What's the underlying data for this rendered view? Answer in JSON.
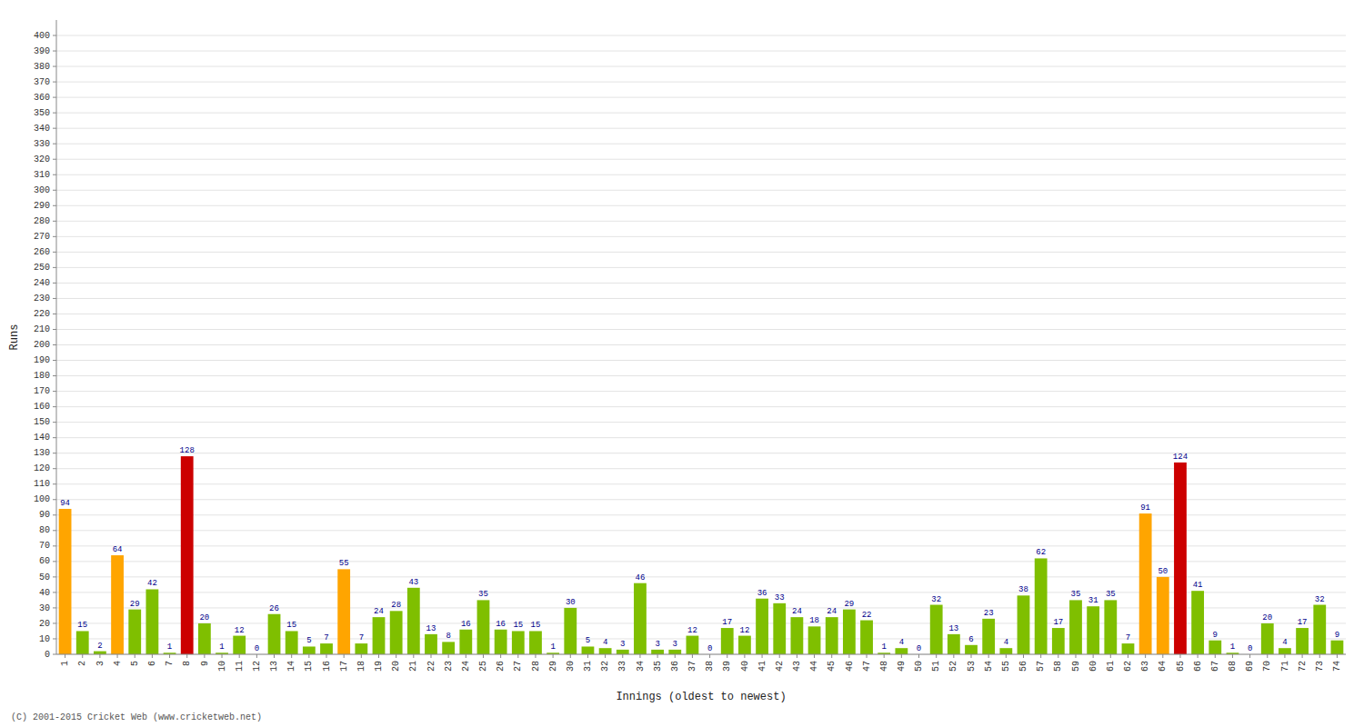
{
  "chart_data": {
    "type": "bar",
    "xlabel": "Innings (oldest to newest)",
    "ylabel": "Runs",
    "annotations": [
      "(C) 2001-2015 Cricket Web (www.cricketweb.net)"
    ],
    "categories": [
      "1",
      "2",
      "3",
      "4",
      "5",
      "6",
      "7",
      "8",
      "9",
      "10",
      "11",
      "12",
      "13",
      "14",
      "15",
      "16",
      "17",
      "18",
      "19",
      "20",
      "21",
      "22",
      "23",
      "24",
      "25",
      "26",
      "27",
      "28",
      "29",
      "30",
      "31",
      "32",
      "33",
      "34",
      "35",
      "36",
      "37",
      "38",
      "39",
      "40",
      "41",
      "42",
      "43",
      "44",
      "45",
      "46",
      "47",
      "48",
      "49",
      "50",
      "51",
      "52",
      "53",
      "54",
      "55",
      "56",
      "57",
      "58",
      "59",
      "60",
      "61",
      "62",
      "63",
      "64",
      "65",
      "66",
      "67",
      "68",
      "69",
      "70",
      "71",
      "72",
      "73",
      "74"
    ],
    "values": [
      94,
      15,
      2,
      64,
      29,
      42,
      1,
      128,
      20,
      1,
      12,
      0,
      26,
      15,
      5,
      7,
      55,
      7,
      24,
      28,
      43,
      13,
      8,
      16,
      35,
      16,
      15,
      15,
      1,
      30,
      5,
      4,
      3,
      46,
      3,
      3,
      12,
      0,
      17,
      12,
      36,
      33,
      24,
      18,
      24,
      29,
      22,
      1,
      4,
      0,
      32,
      13,
      6,
      23,
      4,
      38,
      62,
      17,
      35,
      31,
      35,
      7,
      91,
      50,
      124,
      41,
      9,
      1,
      0,
      20,
      4,
      17,
      32,
      9
    ],
    "colors": [
      "#FFA500",
      "#7FBF00",
      "#7FBF00",
      "#FFA500",
      "#7FBF00",
      "#7FBF00",
      "#7FBF00",
      "#CC0000",
      "#7FBF00",
      "#7FBF00",
      "#7FBF00",
      "#7FBF00",
      "#7FBF00",
      "#7FBF00",
      "#7FBF00",
      "#7FBF00",
      "#FFA500",
      "#7FBF00",
      "#7FBF00",
      "#7FBF00",
      "#7FBF00",
      "#7FBF00",
      "#7FBF00",
      "#7FBF00",
      "#7FBF00",
      "#7FBF00",
      "#7FBF00",
      "#7FBF00",
      "#7FBF00",
      "#7FBF00",
      "#7FBF00",
      "#7FBF00",
      "#7FBF00",
      "#7FBF00",
      "#7FBF00",
      "#7FBF00",
      "#7FBF00",
      "#7FBF00",
      "#7FBF00",
      "#7FBF00",
      "#7FBF00",
      "#7FBF00",
      "#7FBF00",
      "#7FBF00",
      "#7FBF00",
      "#7FBF00",
      "#7FBF00",
      "#7FBF00",
      "#7FBF00",
      "#7FBF00",
      "#7FBF00",
      "#7FBF00",
      "#7FBF00",
      "#7FBF00",
      "#7FBF00",
      "#7FBF00",
      "#7FBF00",
      "#7FBF00",
      "#7FBF00",
      "#7FBF00",
      "#7FBF00",
      "#7FBF00",
      "#FFA500",
      "#FFA500",
      "#CC0000",
      "#7FBF00",
      "#7FBF00",
      "#7FBF00",
      "#7FBF00",
      "#7FBF00",
      "#7FBF00",
      "#7FBF00",
      "#7FBF00",
      "#7FBF00"
    ],
    "ylim": [
      0,
      410
    ],
    "yticks": [
      0,
      10,
      20,
      30,
      40,
      50,
      60,
      70,
      80,
      90,
      100,
      110,
      120,
      130,
      140,
      150,
      160,
      170,
      180,
      190,
      200,
      210,
      220,
      230,
      240,
      250,
      260,
      270,
      280,
      290,
      300,
      310,
      320,
      330,
      340,
      350,
      360,
      370,
      380,
      390,
      400
    ],
    "grid": true,
    "data_labels": true
  }
}
